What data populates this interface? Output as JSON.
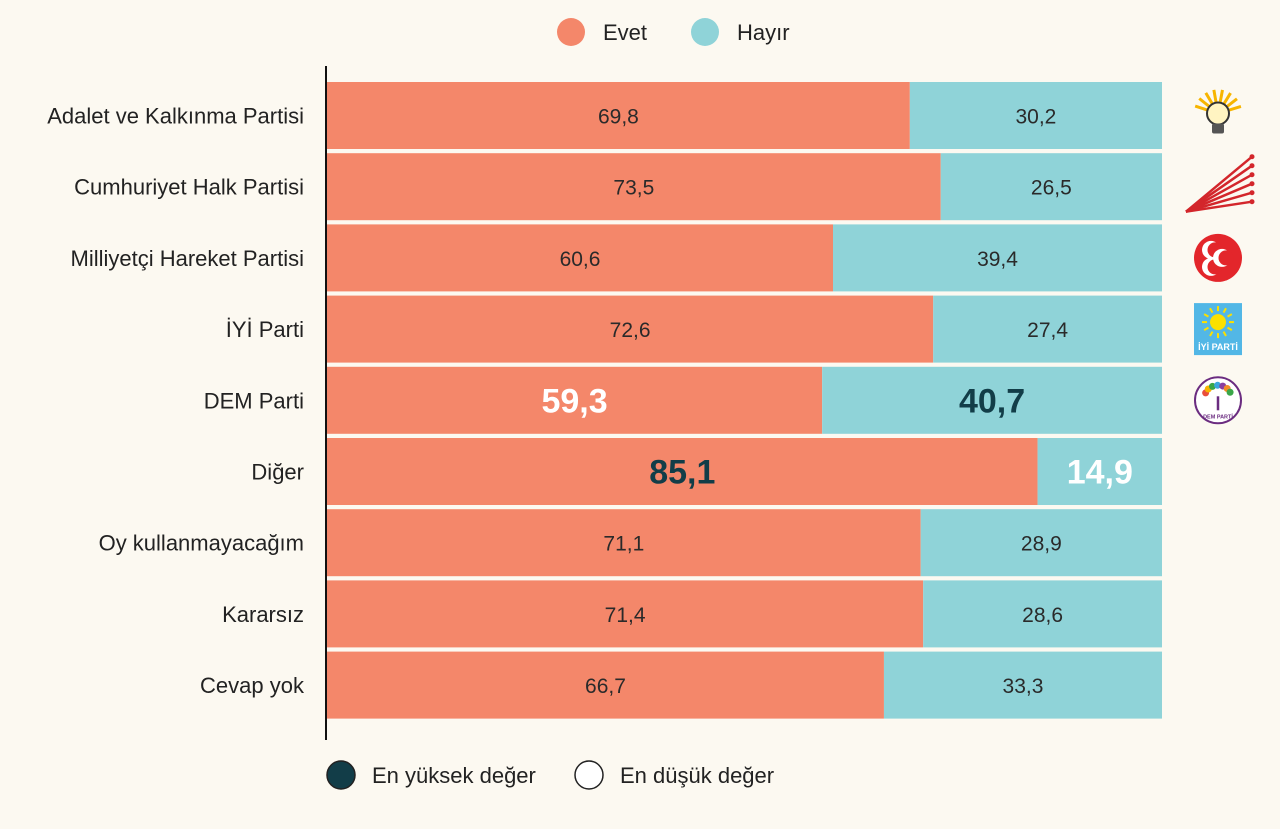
{
  "chart_data": {
    "type": "bar",
    "orientation": "horizontal",
    "stacked": true,
    "categories": [
      "Adalet ve Kalkınma Partisi",
      "Cumhuriyet Halk Partisi",
      "Milliyetçi Hareket Partisi",
      "İYİ Parti",
      "DEM Parti",
      "Diğer",
      "Oy kullanmayacağım",
      "Kararsız",
      "Cevap yok"
    ],
    "series": [
      {
        "name": "Evet",
        "color": "#f4876a",
        "values": [
          69.8,
          73.5,
          60.6,
          72.6,
          59.3,
          85.1,
          71.1,
          71.4,
          66.7
        ],
        "labels": [
          "69,8",
          "73,5",
          "60,6",
          "72,6",
          "59,3",
          "85,1",
          "71,1",
          "71,4",
          "66,7"
        ]
      },
      {
        "name": "Hayır",
        "color": "#8fd3d8",
        "values": [
          30.2,
          26.5,
          39.4,
          27.4,
          40.7,
          14.9,
          28.9,
          28.6,
          33.3
        ],
        "labels": [
          "30,2",
          "26,5",
          "39,4",
          "27,4",
          "40,7",
          "14,9",
          "28,9",
          "28,6",
          "33,3"
        ]
      }
    ],
    "xlim": [
      0,
      100
    ],
    "legend_position": "top-center",
    "highlights": {
      "highest_value": [
        {
          "series": 0,
          "category": 5
        },
        {
          "series": 1,
          "category": 4
        }
      ],
      "lowest_value": [
        {
          "series": 0,
          "category": 4
        },
        {
          "series": 1,
          "category": 5
        }
      ]
    },
    "highlight_legend": [
      {
        "label": "En yüksek değer",
        "color": "#123d48"
      },
      {
        "label": "En düşük değer",
        "color": "#ffffff"
      }
    ],
    "party_logos": [
      "bulb-logo",
      "six-arrows-logo",
      "crescents-logo",
      "sun-logo",
      "tree-logo",
      null,
      null,
      null,
      null
    ],
    "logo_colors": {
      "akp_yellow": "#f7b500",
      "chp_red": "#d3262b",
      "mhp_red": "#e3262b",
      "iyi_blue": "#52b7e6",
      "iyi_yellow": "#fbe000",
      "dem_purple": "#6b2c80",
      "dem_green": "#3aa648"
    },
    "logo_texts": {
      "iyi": "İYİ PARTİ",
      "dem": "DEM PARTİ"
    }
  }
}
